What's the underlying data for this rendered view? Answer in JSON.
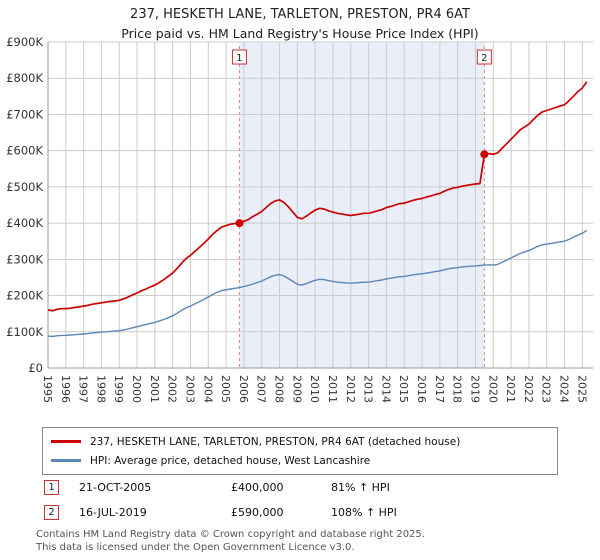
{
  "title": "237, HESKETH LANE, TARLETON, PRESTON, PR4 6AT",
  "subtitle": "Price paid vs. HM Land Registry's House Price Index (HPI)",
  "chart_data": {
    "type": "line",
    "x_range": [
      1995,
      2025.6
    ],
    "y_range_k": [
      0,
      900
    ],
    "value_unit": "£1000",
    "x_start": 1995,
    "x_step": 0.25,
    "x_ticks": [
      1995,
      1996,
      1997,
      1998,
      1999,
      2000,
      2001,
      2002,
      2003,
      2004,
      2005,
      2006,
      2007,
      2008,
      2009,
      2010,
      2011,
      2012,
      2013,
      2014,
      2015,
      2016,
      2017,
      2018,
      2019,
      2020,
      2021,
      2022,
      2023,
      2024,
      2025
    ],
    "y_ticks": [
      "£0",
      "£100K",
      "£200K",
      "£300K",
      "£400K",
      "£500K",
      "£600K",
      "£700K",
      "£800K",
      "£900K"
    ],
    "grid": true,
    "legend_position": "bottom",
    "colors": {
      "shade": "#e9eef8",
      "dashed": "#e08888",
      "grid": "#cccccc",
      "axis": "#999999",
      "flag_border": "#cc3333"
    },
    "series": [
      {
        "name": "237, HESKETH LANE, TARLETON, PRESTON, PR4 6AT (detached house)",
        "color": "#cc0000",
        "values": [
          160,
          158,
          162,
          164,
          164,
          165,
          167,
          169,
          171,
          173,
          176,
          178,
          180,
          182,
          184,
          185,
          187,
          191,
          196,
          202,
          207,
          213,
          218,
          224,
          229,
          236,
          244,
          253,
          262,
          275,
          289,
          302,
          311,
          322,
          333,
          344,
          356,
          369,
          380,
          389,
          393,
          397,
          399,
          400,
          405,
          410,
          418,
          425,
          432,
          443,
          454,
          461,
          464,
          457,
          445,
          430,
          416,
          412,
          419,
          428,
          436,
          441,
          439,
          434,
          430,
          427,
          425,
          423,
          421,
          423,
          425,
          427,
          427,
          430,
          434,
          437,
          443,
          446,
          450,
          454,
          455,
          459,
          463,
          466,
          468,
          472,
          475,
          479,
          482,
          488,
          493,
          497,
          499,
          502,
          504,
          506,
          508,
          509,
          590,
          592,
          590,
          594,
          607,
          619,
          632,
          644,
          657,
          665,
          673,
          686,
          698,
          707,
          711,
          715,
          719,
          723,
          727,
          738,
          750,
          763,
          773,
          790
        ]
      },
      {
        "name": "HPI: Average price, detached house, West Lancashire",
        "color": "#5b87b7",
        "values": [
          88,
          87,
          89,
          90,
          90,
          91,
          92,
          93,
          94,
          95,
          97,
          98,
          99,
          100,
          101,
          102,
          103,
          105,
          108,
          111,
          114,
          117,
          120,
          123,
          126,
          130,
          134,
          139,
          144,
          151,
          159,
          166,
          171,
          177,
          183,
          189,
          196,
          203,
          209,
          214,
          216,
          218,
          220,
          222,
          225,
          228,
          232,
          236,
          240,
          246,
          252,
          256,
          258,
          254,
          247,
          239,
          231,
          229,
          233,
          238,
          242,
          245,
          244,
          241,
          239,
          237,
          236,
          235,
          234,
          235,
          236,
          237,
          237,
          239,
          241,
          243,
          246,
          248,
          250,
          252,
          253,
          255,
          257,
          259,
          260,
          262,
          264,
          266,
          268,
          271,
          274,
          276,
          277,
          279,
          280,
          281,
          282,
          283,
          284,
          285,
          284,
          286,
          292,
          298,
          304,
          310,
          316,
          320,
          324,
          330,
          336,
          340,
          342,
          344,
          346,
          348,
          350,
          355,
          361,
          367,
          372,
          380
        ]
      }
    ],
    "sales": [
      {
        "label": "1",
        "x": 2005.75,
        "price_k": 400
      },
      {
        "label": "2",
        "x": 2019.5,
        "price_k": 590
      }
    ],
    "shaded_region": [
      2005.75,
      2019.5
    ]
  },
  "legend": {
    "items": [
      {
        "label": "237, HESKETH LANE, TARLETON, PRESTON, PR4 6AT (detached house)"
      },
      {
        "label": "HPI: Average price, detached house, West Lancashire"
      }
    ]
  },
  "table": {
    "rows": [
      {
        "num": "1",
        "date": "21-OCT-2005",
        "price": "£400,000",
        "hpi": "81% ↑ HPI"
      },
      {
        "num": "2",
        "date": "16-JUL-2019",
        "price": "£590,000",
        "hpi": "108% ↑ HPI"
      }
    ]
  },
  "footer": {
    "line1": "Contains HM Land Registry data © Crown copyright and database right 2025.",
    "line2": "This data is licensed under the Open Government Licence v3.0."
  }
}
